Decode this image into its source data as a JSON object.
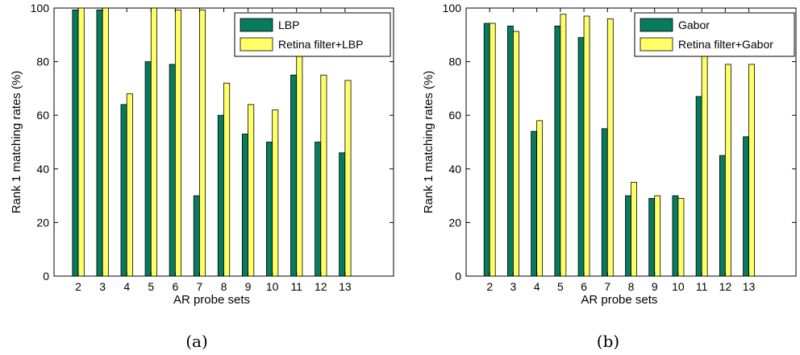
{
  "colors": {
    "series1": "#087a5f",
    "series2": "#ffff66",
    "axis": "#000000"
  },
  "chart_data": [
    {
      "type": "bar",
      "caption": "(a)",
      "xlabel": "AR probe sets",
      "ylabel": "Rank 1 matching rates (%)",
      "ylim": [
        0,
        100
      ],
      "yticks": [
        0,
        20,
        40,
        60,
        80,
        100
      ],
      "xlim": [
        1,
        15
      ],
      "categories": [
        "2",
        "3",
        "4",
        "5",
        "6",
        "7",
        "8",
        "9",
        "10",
        "11",
        "12",
        "13"
      ],
      "series": [
        {
          "name": "LBP",
          "values": [
            99.3,
            99.3,
            64,
            80,
            79,
            30,
            60,
            53,
            50,
            75,
            50,
            46
          ]
        },
        {
          "name": "Retina filter+LBP",
          "values": [
            100,
            100,
            68,
            100,
            99.3,
            99.3,
            72,
            64,
            62,
            82,
            75,
            73
          ]
        }
      ],
      "grid": false,
      "legend": "top-right"
    },
    {
      "type": "bar",
      "caption": "(b)",
      "xlabel": "AR probe sets",
      "ylabel": "Rank 1 matching rates (%)",
      "ylim": [
        0,
        100
      ],
      "yticks": [
        0,
        20,
        40,
        60,
        80,
        100
      ],
      "xlim": [
        1,
        15
      ],
      "categories": [
        "2",
        "3",
        "4",
        "5",
        "6",
        "7",
        "8",
        "9",
        "10",
        "11",
        "12",
        "13"
      ],
      "series": [
        {
          "name": "Gabor",
          "values": [
            94.3,
            93.3,
            54,
            93.3,
            89,
            55,
            30,
            29,
            30,
            67,
            45,
            52
          ]
        },
        {
          "name": "Retina filter+Gabor",
          "values": [
            94.3,
            91.3,
            58,
            97.7,
            97,
            96,
            35,
            30,
            29,
            82,
            79,
            79
          ]
        }
      ],
      "grid": false,
      "legend": "top-right"
    }
  ]
}
